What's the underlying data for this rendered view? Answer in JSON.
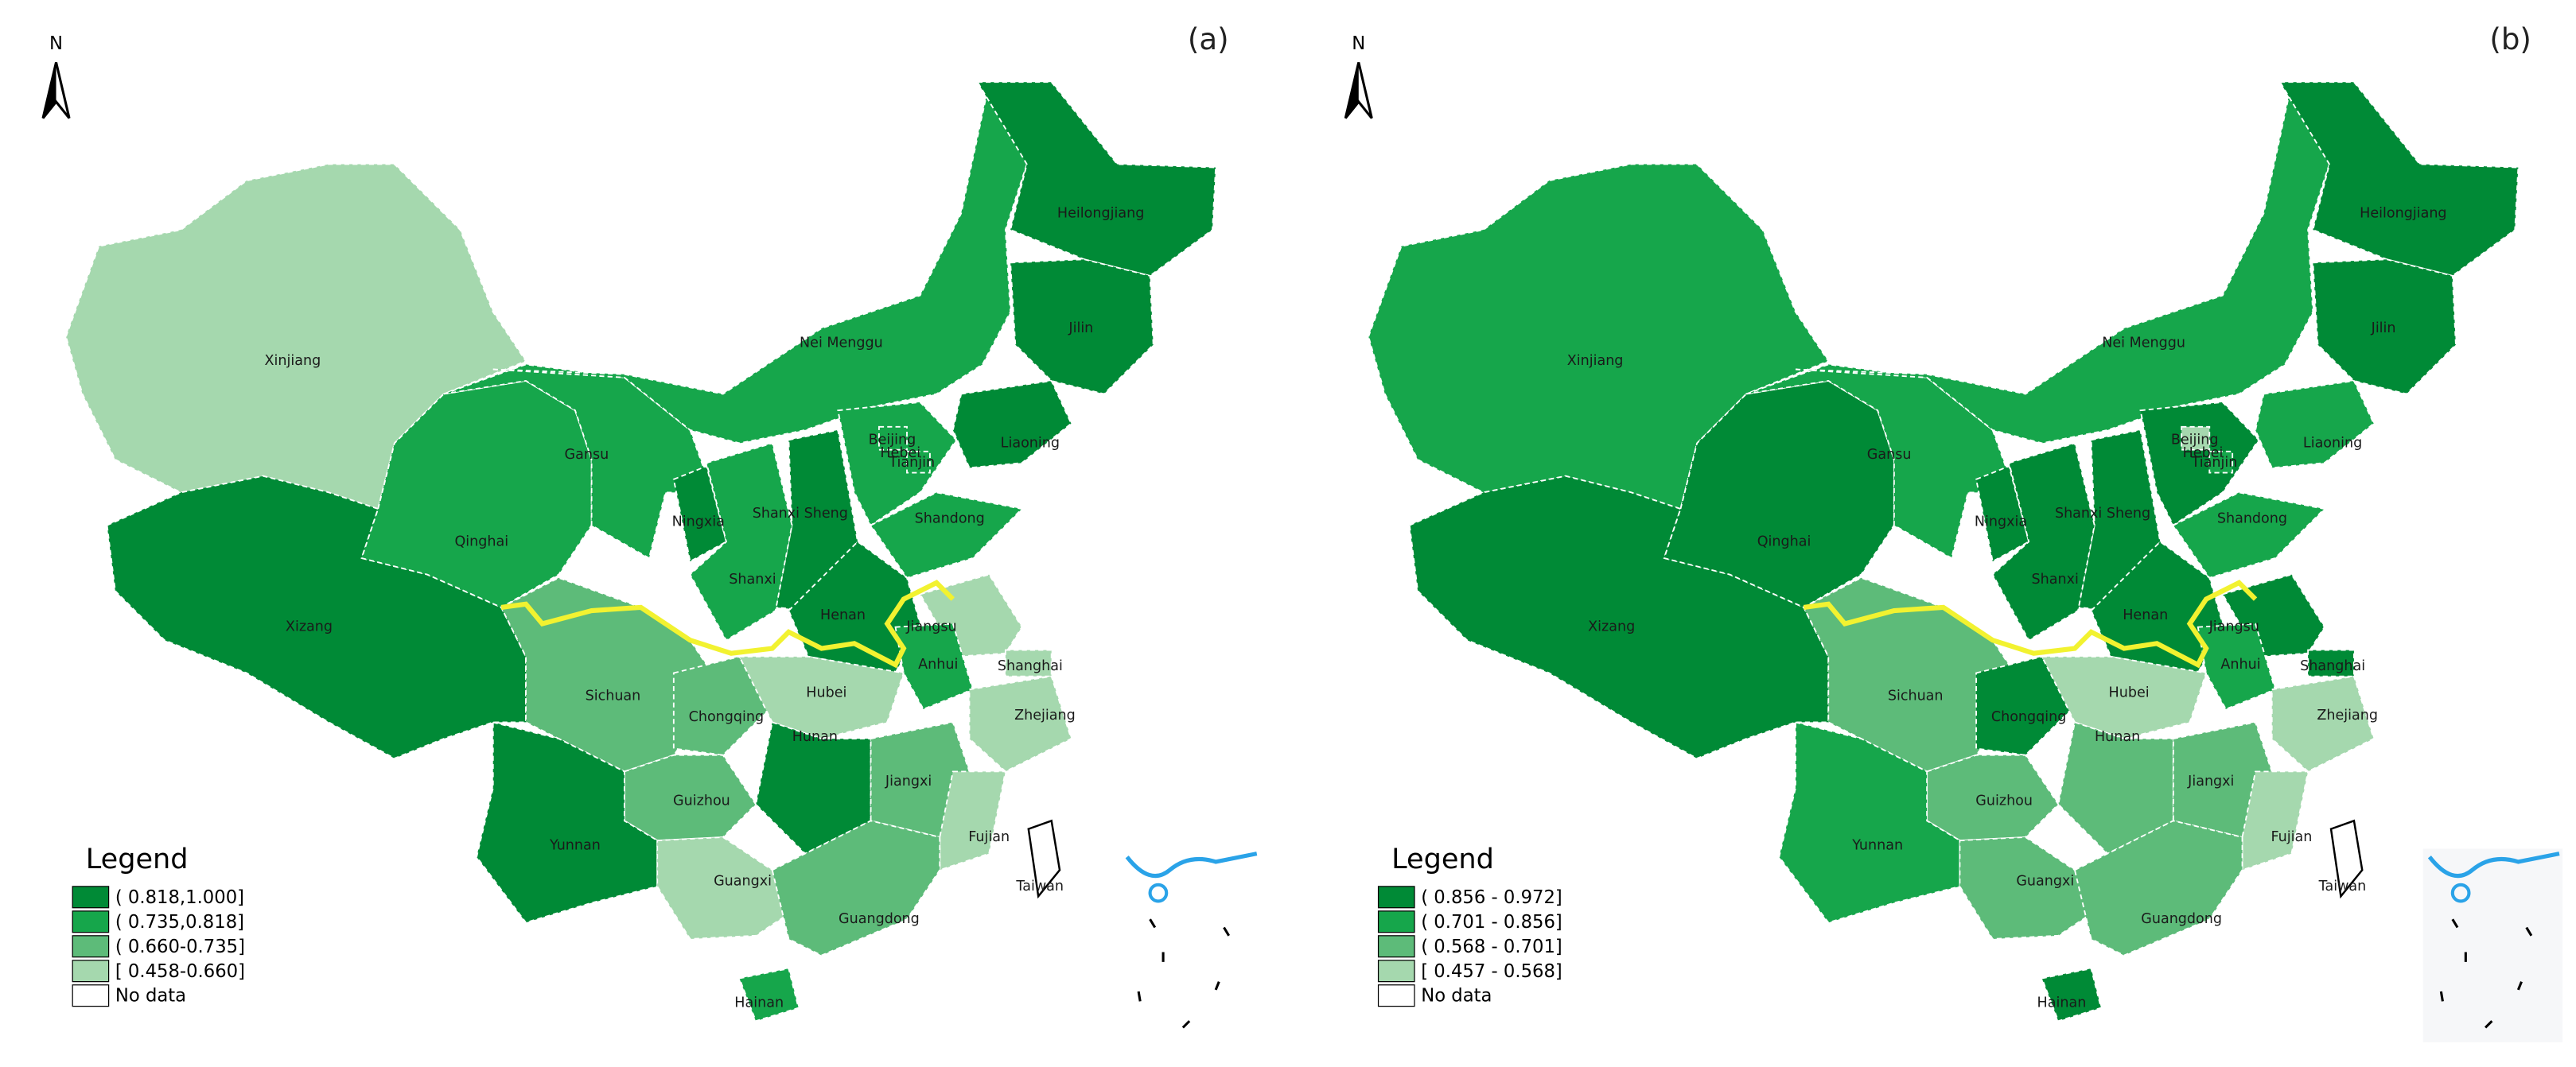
{
  "maps": [
    {
      "label": "(a)",
      "north": "N",
      "legend": {
        "title": "Legend",
        "items": [
          {
            "label": "( 0.818,1.000]",
            "color": "#008a36"
          },
          {
            "label": "( 0.735,0.818]",
            "color": "#16a64b"
          },
          {
            "label": "( 0.660-0.735]",
            "color": "#5dbb79"
          },
          {
            "label": "[ 0.458-0.660]",
            "color": "#a5d8ae"
          },
          {
            "label": "No data",
            "color": "#ffffff"
          }
        ]
      },
      "provinces": [
        {
          "name": "Xinjiang",
          "color": "#a5d8ae"
        },
        {
          "name": "Xizang",
          "color": "#008a36"
        },
        {
          "name": "Qinghai",
          "color": "#16a64b"
        },
        {
          "name": "Gansu",
          "color": "#16a64b"
        },
        {
          "name": "Nei Menggu",
          "color": "#16a64b"
        },
        {
          "name": "Heilongjiang",
          "color": "#008a36"
        },
        {
          "name": "Jilin",
          "color": "#008a36"
        },
        {
          "name": "Liaoning",
          "color": "#008a36"
        },
        {
          "name": "Ningxia",
          "color": "#008a36"
        },
        {
          "name": "Shanxi Sheng",
          "color": "#008a36"
        },
        {
          "name": "Shanxi",
          "color": "#16a64b"
        },
        {
          "name": "Hebei",
          "color": "#16a64b"
        },
        {
          "name": "Beijing",
          "color": "#16a64b"
        },
        {
          "name": "Tianjin",
          "color": "#16a64b"
        },
        {
          "name": "Shandong",
          "color": "#16a64b"
        },
        {
          "name": "Henan",
          "color": "#008a36"
        },
        {
          "name": "Jiangsu",
          "color": "#a5d8ae"
        },
        {
          "name": "Anhui",
          "color": "#16a64b"
        },
        {
          "name": "Shanghai",
          "color": "#a5d8ae"
        },
        {
          "name": "Zhejiang",
          "color": "#a5d8ae"
        },
        {
          "name": "Sichuan",
          "color": "#5dbb79"
        },
        {
          "name": "Chongqing",
          "color": "#5dbb79"
        },
        {
          "name": "Hubei",
          "color": "#a5d8ae"
        },
        {
          "name": "Hunan",
          "color": "#008a36"
        },
        {
          "name": "Jiangxi",
          "color": "#5dbb79"
        },
        {
          "name": "Fujian",
          "color": "#a5d8ae"
        },
        {
          "name": "Guizhou",
          "color": "#5dbb79"
        },
        {
          "name": "Yunnan",
          "color": "#008a36"
        },
        {
          "name": "Guangxi",
          "color": "#a5d8ae"
        },
        {
          "name": "Guangdong",
          "color": "#5dbb79"
        },
        {
          "name": "Hainan",
          "color": "#16a64b"
        },
        {
          "name": "Taiwan",
          "color": "#ffffff"
        }
      ]
    },
    {
      "label": "(b)",
      "north": "N",
      "legend": {
        "title": "Legend",
        "items": [
          {
            "label": "( 0.856 - 0.972]",
            "color": "#008a36"
          },
          {
            "label": "( 0.701 - 0.856]",
            "color": "#16a64b"
          },
          {
            "label": "( 0.568 - 0.701]",
            "color": "#5dbb79"
          },
          {
            "label": "[ 0.457 - 0.568]",
            "color": "#a5d8ae"
          },
          {
            "label": "No data",
            "color": "#ffffff"
          }
        ]
      },
      "provinces": [
        {
          "name": "Xinjiang",
          "color": "#16a64b"
        },
        {
          "name": "Xizang",
          "color": "#008a36"
        },
        {
          "name": "Qinghai",
          "color": "#008a36"
        },
        {
          "name": "Gansu",
          "color": "#16a64b"
        },
        {
          "name": "Nei Menggu",
          "color": "#16a64b"
        },
        {
          "name": "Heilongjiang",
          "color": "#008a36"
        },
        {
          "name": "Jilin",
          "color": "#008a36"
        },
        {
          "name": "Liaoning",
          "color": "#16a64b"
        },
        {
          "name": "Ningxia",
          "color": "#008a36"
        },
        {
          "name": "Shanxi Sheng",
          "color": "#008a36"
        },
        {
          "name": "Shanxi",
          "color": "#008a36"
        },
        {
          "name": "Hebei",
          "color": "#008a36"
        },
        {
          "name": "Beijing",
          "color": "#a5d8ae"
        },
        {
          "name": "Tianjin",
          "color": "#16a64b"
        },
        {
          "name": "Shandong",
          "color": "#16a64b"
        },
        {
          "name": "Henan",
          "color": "#008a36"
        },
        {
          "name": "Jiangsu",
          "color": "#008a36"
        },
        {
          "name": "Anhui",
          "color": "#16a64b"
        },
        {
          "name": "Shanghai",
          "color": "#008a36"
        },
        {
          "name": "Zhejiang",
          "color": "#a5d8ae"
        },
        {
          "name": "Sichuan",
          "color": "#5dbb79"
        },
        {
          "name": "Chongqing",
          "color": "#008a36"
        },
        {
          "name": "Hubei",
          "color": "#a5d8ae"
        },
        {
          "name": "Hunan",
          "color": "#5dbb79"
        },
        {
          "name": "Jiangxi",
          "color": "#5dbb79"
        },
        {
          "name": "Fujian",
          "color": "#a5d8ae"
        },
        {
          "name": "Guizhou",
          "color": "#5dbb79"
        },
        {
          "name": "Yunnan",
          "color": "#16a64b"
        },
        {
          "name": "Guangxi",
          "color": "#5dbb79"
        },
        {
          "name": "Guangdong",
          "color": "#5dbb79"
        },
        {
          "name": "Hainan",
          "color": "#008a36"
        },
        {
          "name": "Taiwan",
          "color": "#ffffff"
        }
      ]
    }
  ]
}
